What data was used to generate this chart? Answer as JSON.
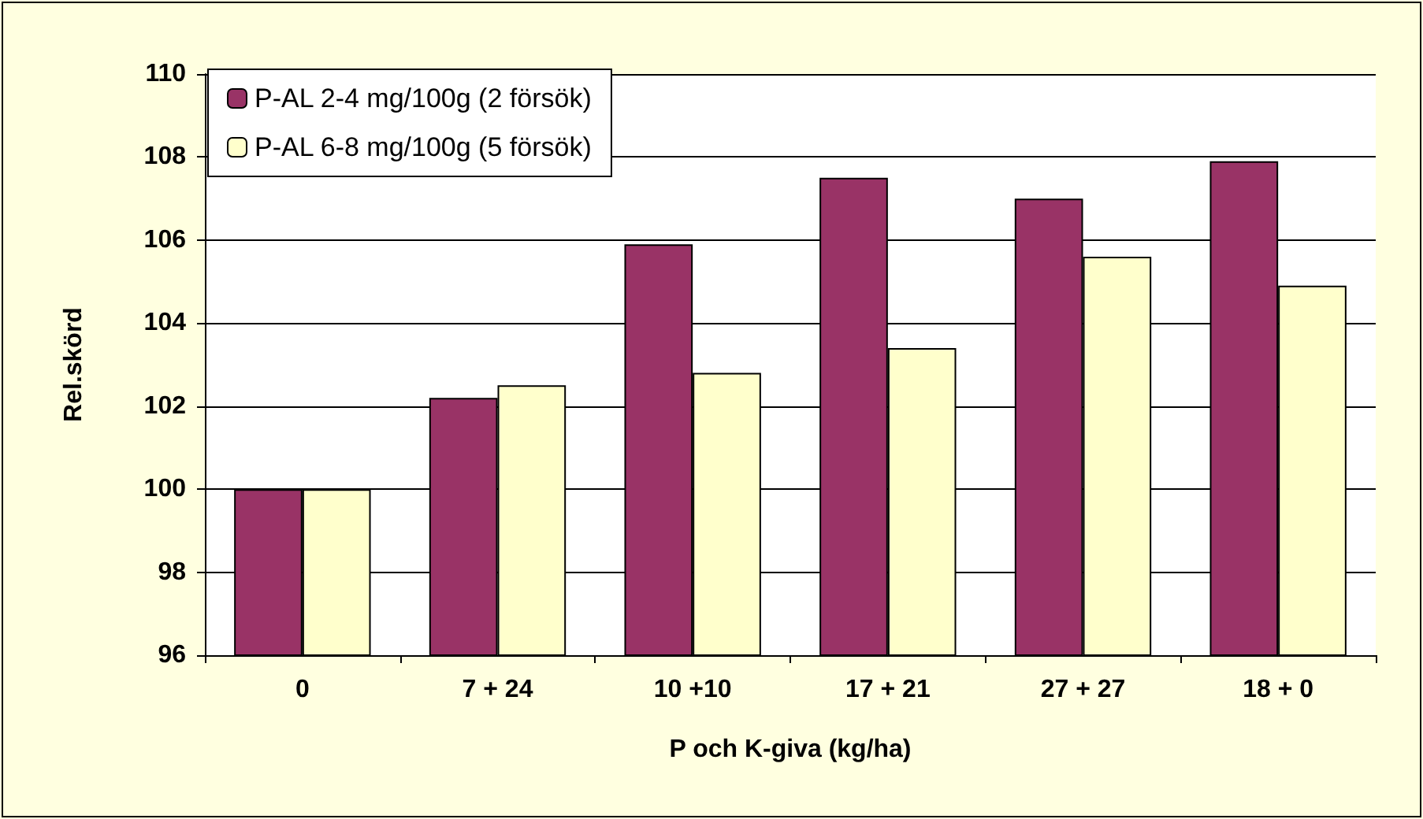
{
  "chart_data": {
    "type": "bar",
    "xlabel": "P och K-giva (kg/ha)",
    "ylabel": "Rel.skörd",
    "categories": [
      "0",
      "7 + 24",
      "10 +10",
      "17 + 21",
      "27 + 27",
      "18 + 0"
    ],
    "series": [
      {
        "name": "P-AL 2-4 mg/100g (2 försök)",
        "color": "#993366",
        "values": [
          100,
          102.2,
          105.9,
          107.5,
          107.0,
          107.9
        ]
      },
      {
        "name": "P-AL 6-8 mg/100g (5 försök)",
        "color": "#ffffcc",
        "values": [
          100,
          102.5,
          102.8,
          103.4,
          105.6,
          104.9
        ]
      }
    ],
    "ylim": [
      96,
      110
    ],
    "yticks": [
      96,
      98,
      100,
      102,
      104,
      106,
      108,
      110
    ],
    "grid": "y",
    "legend": "top left"
  }
}
